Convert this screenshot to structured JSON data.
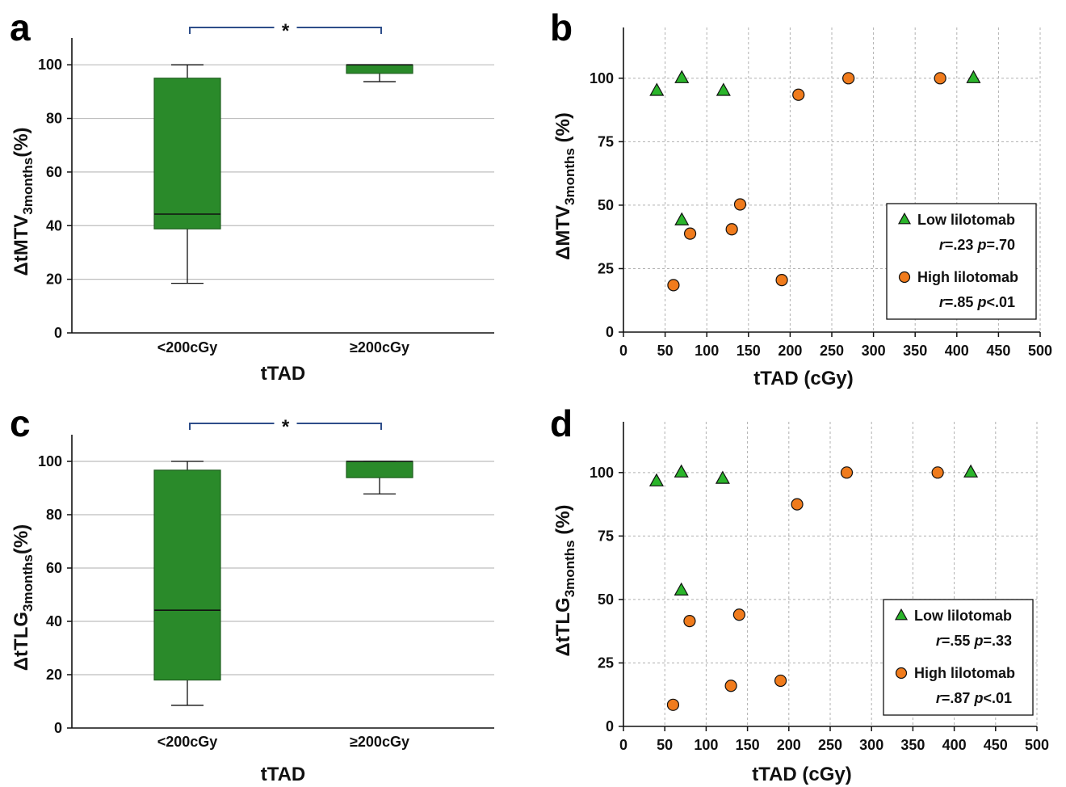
{
  "colors": {
    "box_fill": "#2a8a2a",
    "box_stroke": "#1f5f1f",
    "triangle_fill": "#2bb52b",
    "circle_fill": "#f07b1c",
    "bracket": "#2e4e8a",
    "grid_box": "#bdbdbd",
    "grid_scatter": "#b0b0b0"
  },
  "panels": {
    "a": {
      "letter": "a"
    },
    "b": {
      "letter": "b"
    },
    "c": {
      "letter": "c"
    },
    "d": {
      "letter": "d"
    }
  },
  "chart_data": [
    {
      "panel": "a",
      "type": "box",
      "categories": [
        "<200cGy",
        "≥200cGy"
      ],
      "xlabel": "tTAD",
      "ylabel": {
        "prefix": "ΔtMTV",
        "subscript": "3months",
        "suffix": "(%)"
      },
      "ylim": [
        0,
        110
      ],
      "yticks": [
        0,
        20,
        40,
        60,
        80,
        100
      ],
      "grid": "horizontal",
      "boxes": [
        {
          "category": "<200cGy",
          "min": 18.5,
          "q1": 38.8,
          "median": 44.3,
          "q3": 95.0,
          "max": 100
        },
        {
          "category": "≥200cGy",
          "min": 93.7,
          "q1": 96.8,
          "median": 100,
          "q3": 100,
          "max": 100
        }
      ],
      "significance": "*"
    },
    {
      "panel": "b",
      "type": "scatter",
      "xlabel": "tTAD (cGy)",
      "ylabel": {
        "prefix": "ΔMTV",
        "subscript": "3months",
        "suffix": " (%)"
      },
      "xlim": [
        0,
        500
      ],
      "ylim": [
        0,
        120
      ],
      "xticks": [
        0,
        50,
        100,
        150,
        200,
        250,
        300,
        350,
        400,
        450,
        500
      ],
      "yticks": [
        0,
        25,
        50,
        75,
        100
      ],
      "grid": "dashed",
      "legend_position": "lower-right",
      "series": [
        {
          "name": "Low lilotomab",
          "marker": "triangle",
          "stats": {
            "r": "=.23",
            "p": "=.70"
          },
          "points": [
            [
              40,
              95
            ],
            [
              70,
              100
            ],
            [
              120,
              95
            ],
            [
              70,
              44
            ],
            [
              420,
              100
            ]
          ]
        },
        {
          "name": "High lilotomab",
          "marker": "circle",
          "stats": {
            "r": "=.85",
            "p": "<.01"
          },
          "points": [
            [
              210,
              93.5
            ],
            [
              270,
              100
            ],
            [
              380,
              100
            ],
            [
              140,
              50.3
            ],
            [
              80,
              38.8
            ],
            [
              130,
              40.5
            ],
            [
              60,
              18.5
            ],
            [
              190,
              20.5
            ]
          ]
        }
      ]
    },
    {
      "panel": "c",
      "type": "box",
      "categories": [
        "<200cGy",
        "≥200cGy"
      ],
      "xlabel": "tTAD",
      "ylabel": {
        "prefix": "ΔtTLG",
        "subscript": "3months",
        "suffix": "(%)"
      },
      "ylim": [
        0,
        110
      ],
      "yticks": [
        0,
        20,
        40,
        60,
        80,
        100
      ],
      "grid": "horizontal",
      "boxes": [
        {
          "category": "<200cGy",
          "min": 8.5,
          "q1": 18.0,
          "median": 44.2,
          "q3": 96.7,
          "max": 100
        },
        {
          "category": "≥200cGy",
          "min": 87.8,
          "q1": 93.9,
          "median": 100,
          "q3": 100,
          "max": 100
        }
      ],
      "significance": "*"
    },
    {
      "panel": "d",
      "type": "scatter",
      "xlabel": "tTAD (cGy)",
      "ylabel": {
        "prefix": "ΔtTLG",
        "subscript": "3months",
        "suffix": " (%)"
      },
      "xlim": [
        0,
        500
      ],
      "ylim": [
        0,
        120
      ],
      "xticks": [
        0,
        50,
        100,
        150,
        200,
        250,
        300,
        350,
        400,
        450,
        500
      ],
      "yticks": [
        0,
        25,
        50,
        75,
        100
      ],
      "grid": "dashed",
      "legend_position": "lower-right",
      "series": [
        {
          "name": "Low lilotomab",
          "marker": "triangle",
          "stats": {
            "r": "=.55",
            "p": "=.33"
          },
          "points": [
            [
              40,
              96.5
            ],
            [
              70,
              100
            ],
            [
              120,
              97.5
            ],
            [
              70,
              53.5
            ],
            [
              420,
              100
            ]
          ]
        },
        {
          "name": "High lilotomab",
          "marker": "circle",
          "stats": {
            "r": "=.87",
            "p": "<.01"
          },
          "points": [
            [
              210,
              87.5
            ],
            [
              270,
              100
            ],
            [
              380,
              100
            ],
            [
              80,
              41.5
            ],
            [
              140,
              44
            ],
            [
              60,
              8.5
            ],
            [
              130,
              16
            ],
            [
              190,
              18
            ]
          ]
        }
      ]
    }
  ]
}
